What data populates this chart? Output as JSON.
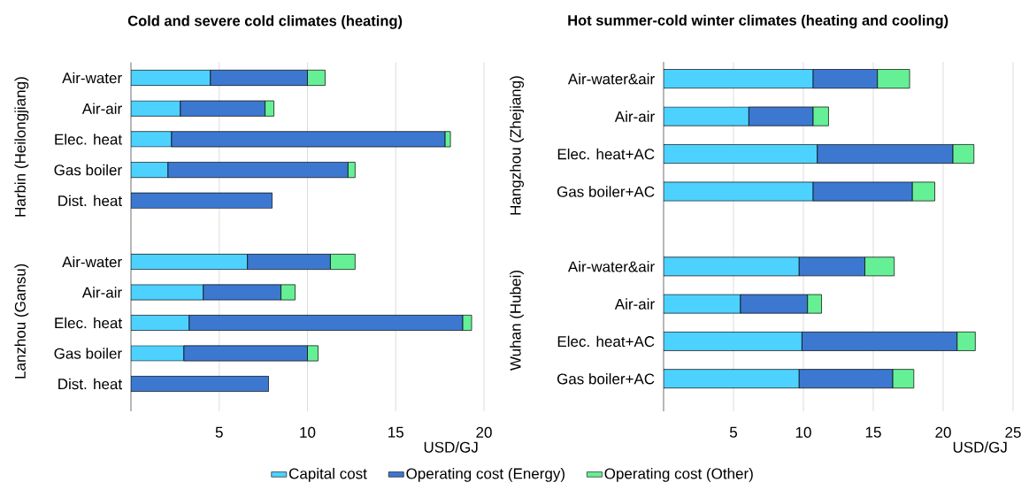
{
  "chart_data": [
    {
      "type": "bar",
      "title": "Cold and severe cold climates (heating)",
      "ylabel": "Harbin (Heilongjiang)",
      "orientation": "horizontal",
      "stacked": true,
      "categories": [
        "Air-water",
        "Air-air",
        "Elec. heat",
        "Gas boiler",
        "Dist.  heat"
      ],
      "series": [
        {
          "color": "#4dd2ff",
          "values": [
            4.5,
            2.8,
            2.3,
            2.1,
            null
          ]
        },
        {
          "color": "#3c78d0",
          "values": [
            5.5,
            4.8,
            15.5,
            10.2,
            8.0
          ]
        },
        {
          "color": "#66f095",
          "values": [
            1.0,
            0.5,
            0.3,
            0.4,
            null
          ]
        }
      ],
      "xlim": [
        0,
        20
      ],
      "xticks": [
        5,
        10,
        15,
        20
      ],
      "grid": "x",
      "tick_labels": "y"
    },
    {
      "type": "bar",
      "ylabel": "Lanzhou (Gansu)",
      "xlabel": "USD/GJ",
      "orientation": "horizontal",
      "stacked": true,
      "categories": [
        "Air-water",
        "Air-air",
        "Elec. heat",
        "Gas boiler",
        "Dist.  heat"
      ],
      "series": [
        {
          "color": "#4dd2ff",
          "values": [
            6.6,
            4.1,
            3.3,
            3.0,
            null
          ]
        },
        {
          "color": "#3c78d0",
          "values": [
            4.7,
            4.4,
            15.5,
            7.0,
            7.8
          ]
        },
        {
          "color": "#66f095",
          "values": [
            1.4,
            0.8,
            0.5,
            0.6,
            null
          ]
        }
      ],
      "xlim": [
        0,
        20
      ],
      "xticks": [
        5,
        10,
        15,
        20
      ],
      "grid": "x"
    },
    {
      "type": "bar",
      "title": "Hot summer-cold winter climates (heating and cooling)",
      "ylabel": "Hangzhou (Zhejiang)",
      "orientation": "horizontal",
      "stacked": true,
      "categories": [
        "Air-water&air",
        "Air-air",
        "Elec. heat+AC",
        "Gas boiler+AC"
      ],
      "series": [
        {
          "color": "#4dd2ff",
          "values": [
            10.7,
            6.1,
            11.0,
            10.7
          ]
        },
        {
          "color": "#3c78d0",
          "values": [
            4.6,
            4.6,
            9.7,
            7.1
          ]
        },
        {
          "color": "#66f095",
          "values": [
            2.3,
            1.1,
            1.5,
            1.6
          ]
        }
      ],
      "xlim": [
        0,
        25
      ],
      "xticks": [
        5,
        10,
        15,
        20,
        25
      ],
      "grid": "x",
      "tick_labels": "y"
    },
    {
      "type": "bar",
      "ylabel": "Wuhan (Hubei)",
      "xlabel": "USD/GJ",
      "orientation": "horizontal",
      "stacked": true,
      "legend": "bottom",
      "categories": [
        "Air-water&air",
        "Air-air",
        "Elec. heat+AC",
        "Gas boiler+AC"
      ],
      "series": [
        {
          "name": "Capital cost",
          "color": "#4dd2ff",
          "values": [
            9.7,
            5.5,
            9.9,
            9.7
          ]
        },
        {
          "name": "Operating cost (Energy)",
          "color": "#3c78d0",
          "values": [
            4.7,
            4.8,
            11.1,
            6.7
          ]
        },
        {
          "name": "Operating cost (Other)",
          "color": "#66f095",
          "values": [
            2.1,
            1.0,
            1.3,
            1.5
          ]
        }
      ],
      "xlim": [
        0,
        25
      ],
      "xticks": [
        5,
        10,
        15,
        20,
        25
      ],
      "grid": "x"
    }
  ]
}
